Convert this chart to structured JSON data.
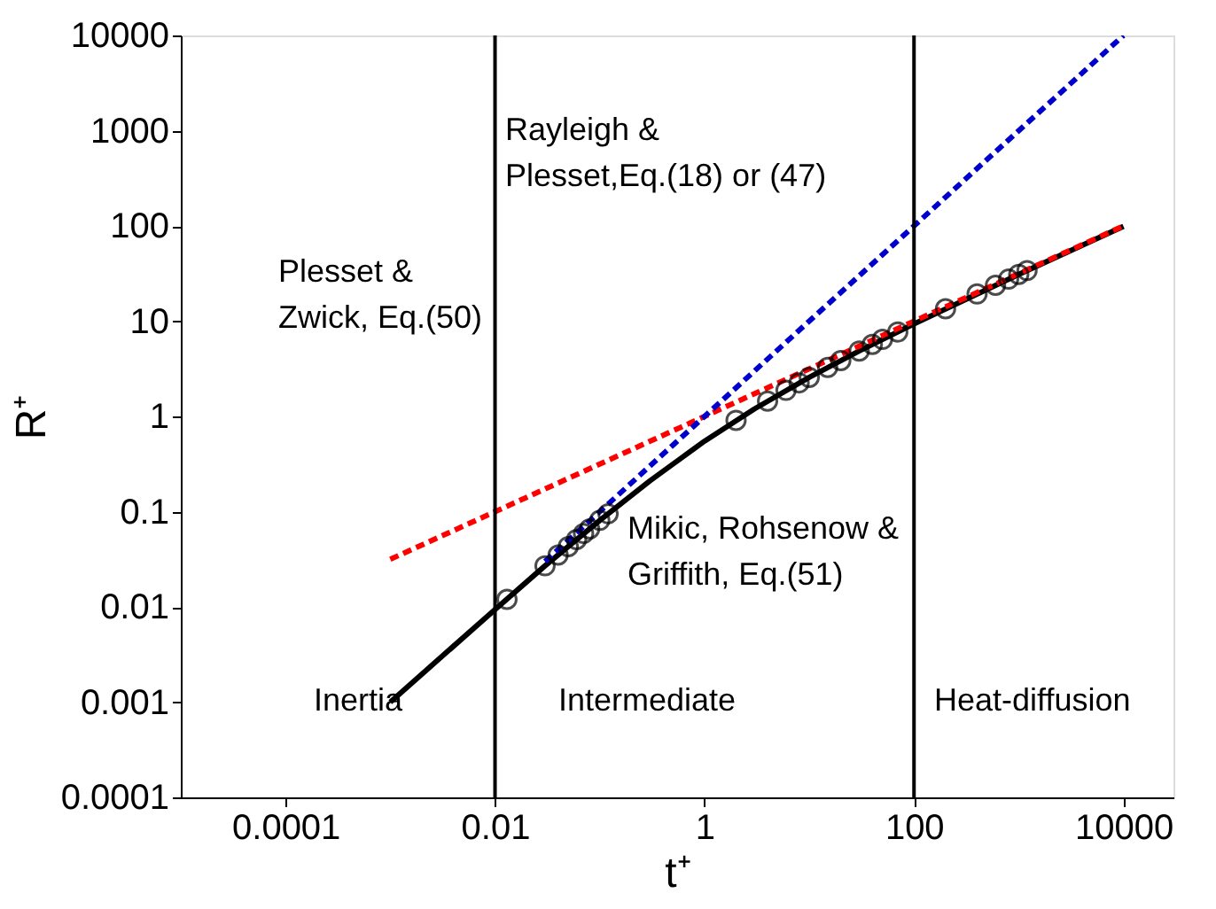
{
  "chart_data": {
    "type": "line",
    "xlabel": "t⁺",
    "ylabel": "R⁺",
    "log": "xy",
    "grid": false,
    "xlim": [
      1e-05,
      30000
    ],
    "xticks": [
      0.0001,
      0.01,
      1,
      100,
      10000
    ],
    "ylim": [
      0.0001,
      10000
    ],
    "yticks": [
      0.0001,
      0.001,
      0.01,
      0.1,
      1,
      10,
      100,
      1000,
      10000
    ],
    "series": [
      {
        "color": "#000000",
        "line_style": "solid",
        "marker": "none",
        "x": [
          0.001,
          0.01,
          0.03,
          0.1,
          0.3,
          1,
          3,
          10,
          30,
          100,
          1000,
          10000
        ],
        "values": [
          0.001,
          0.0094,
          0.027,
          0.081,
          0.21,
          0.55,
          1.2,
          2.57,
          4.86,
          9.36,
          31,
          99
        ]
      },
      {
        "color": "#ff0000",
        "line_style": "dashed",
        "marker": "none",
        "x": [
          0.001,
          10000
        ],
        "values": [
          0.0316,
          100
        ]
      },
      {
        "color": "#0000cc",
        "line_style": "dashed",
        "marker": "none",
        "x": [
          0.03,
          10000
        ],
        "values": [
          0.03,
          10000
        ]
      },
      {
        "type": "scatter",
        "color": "#000000",
        "marker": "circle",
        "x": [
          0.013,
          0.03,
          0.04,
          0.05,
          0.06,
          0.07,
          0.08,
          0.1,
          0.12,
          2,
          4,
          6,
          8,
          10,
          15,
          20,
          30,
          40,
          50,
          70,
          200,
          400,
          600,
          800,
          1000,
          1200
        ],
        "values": [
          0.012,
          0.027,
          0.035,
          0.043,
          0.051,
          0.059,
          0.066,
          0.081,
          0.095,
          0.91,
          1.45,
          1.88,
          2.25,
          2.57,
          3.27,
          3.86,
          4.86,
          5.7,
          6.44,
          7.7,
          13.5,
          19.3,
          23.8,
          27.6,
          31,
          34
        ]
      }
    ],
    "ref_lines": [
      {
        "axis": "x",
        "value": 0.01,
        "color": "#000000"
      },
      {
        "axis": "x",
        "value": 100,
        "color": "#000000"
      }
    ],
    "annotations": [
      "Rayleigh &\nPlesset,Eq.(18) or (47)",
      "Plesset &\nZwick, Eq.(50)",
      "Mikic, Rohsenow &\nGriffith, Eq.(51)",
      "Inertia",
      "Intermediate",
      "Heat-diffusion"
    ]
  }
}
